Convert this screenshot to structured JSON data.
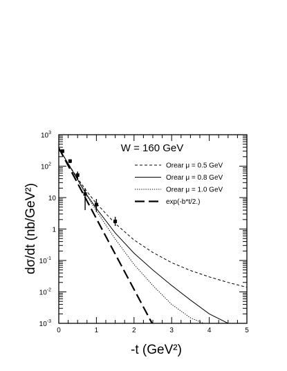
{
  "chart_data": {
    "type": "line",
    "title": "W = 160 GeV",
    "xlabel": "-t (GeV²)",
    "ylabel": "dσ/dt (nb/GeV²)",
    "xlim": [
      0,
      5
    ],
    "ylim": [
      0.001,
      1000
    ],
    "yscale": "log",
    "x_tick_labels": [
      "0",
      "1",
      "2",
      "3",
      "4",
      "5"
    ],
    "x_ticks": [
      0,
      1,
      2,
      3,
      4,
      5
    ],
    "y_ticks": [
      {
        "value": 0.001,
        "base": "10",
        "exp": "-3"
      },
      {
        "value": 0.01,
        "base": "10",
        "exp": "-2"
      },
      {
        "value": 0.1,
        "base": "10",
        "exp": "-1"
      },
      {
        "value": 1,
        "base": "1",
        "exp": ""
      },
      {
        "value": 10,
        "base": "10",
        "exp": ""
      },
      {
        "value": 100,
        "base": "10",
        "exp": "2"
      },
      {
        "value": 1000,
        "base": "10",
        "exp": "3"
      }
    ],
    "legend_position": "top-right",
    "series": [
      {
        "name": "Orear μ = 0.5 GeV",
        "style": "dashed-fine",
        "x": [
          0,
          0.25,
          0.5,
          0.75,
          1,
          1.5,
          2,
          2.5,
          3,
          3.5,
          4,
          4.5,
          5
        ],
        "y": [
          380,
          120,
          41,
          15.5,
          6.5,
          1.5,
          0.45,
          0.18,
          0.085,
          0.048,
          0.03,
          0.02,
          0.014
        ]
      },
      {
        "name": "Orear μ = 0.8 GeV",
        "style": "solid",
        "x": [
          0,
          0.25,
          0.5,
          0.75,
          1,
          1.5,
          2,
          2.5,
          3,
          3.5,
          4,
          4.5
        ],
        "y": [
          380,
          120,
          38,
          12,
          4.5,
          0.75,
          0.17,
          0.05,
          0.016,
          0.0055,
          0.002,
          0.001
        ]
      },
      {
        "name": "Orear μ = 1.0 GeV",
        "style": "dotted",
        "x": [
          0,
          0.25,
          0.5,
          0.75,
          1,
          1.5,
          2,
          2.5,
          3,
          3.5,
          3.85
        ],
        "y": [
          380,
          120,
          36,
          11,
          3.8,
          0.48,
          0.075,
          0.016,
          0.004,
          0.0015,
          0.001
        ]
      },
      {
        "name": "exp(-b*t/2.)",
        "style": "long-dash",
        "x": [
          0,
          2.48
        ],
        "y": [
          380,
          0.001
        ]
      }
    ],
    "data_points": [
      {
        "x": 0.1,
        "y": 300,
        "yerr_lo": 40,
        "yerr_hi": 40
      },
      {
        "x": 0.3,
        "y": 145,
        "yerr_lo": 20,
        "yerr_hi": 20
      },
      {
        "x": 0.5,
        "y": 52,
        "yerr_lo": 15,
        "yerr_hi": 15
      },
      {
        "x": 0.7,
        "y": 13,
        "yerr_lo": 9,
        "yerr_hi": 7
      },
      {
        "x": 1.0,
        "y": 6,
        "yerr_lo": 2.5,
        "yerr_hi": 3
      },
      {
        "x": 1.5,
        "y": 1.75,
        "yerr_lo": 0.5,
        "yerr_hi": 0.7
      }
    ]
  }
}
